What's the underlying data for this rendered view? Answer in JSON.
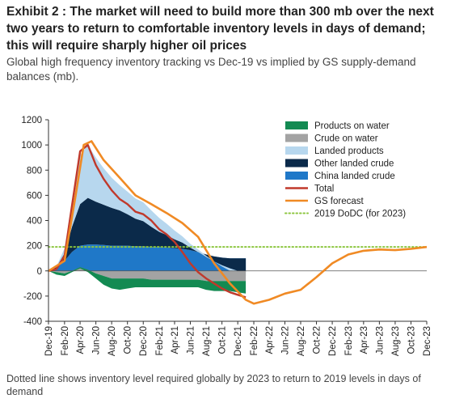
{
  "header": {
    "title": "Exhibit 2 : The market will need to build more than 300 mb over the next two years to return to comfortable inventory levels in days of demand; this will require sharply higher oil prices",
    "subtitle": "Global high frequency inventory tracking vs Dec-19 vs implied by GS supply-demand balances (mb).",
    "footnote": "Dotted line shows inventory level required globally by 2023 to return to 2019 levels in days of demand"
  },
  "chart_data": {
    "type": "area",
    "title": "",
    "xlabel": "",
    "ylabel": "",
    "ylim": [
      -400,
      1200
    ],
    "yticks": [
      -400,
      -200,
      0,
      200,
      400,
      600,
      800,
      1000,
      1200
    ],
    "xlim": [
      "2019-12-01",
      "2023-12-01"
    ],
    "xticks": [
      "Dec-19",
      "Feb-20",
      "Apr-20",
      "Jun-20",
      "Aug-20",
      "Oct-20",
      "Dec-20",
      "Feb-21",
      "Apr-21",
      "Jun-21",
      "Aug-21",
      "Oct-21",
      "Dec-21",
      "Feb-22",
      "Apr-22",
      "Jun-22",
      "Aug-22",
      "Oct-22",
      "Dec-22",
      "Feb-23",
      "Apr-23",
      "Jun-23",
      "Aug-23",
      "Oct-23",
      "Dec-23"
    ],
    "legend_position": "top-right",
    "grid": false,
    "x": [
      "2019-12-01",
      "2020-01-01",
      "2020-02-01",
      "2020-03-01",
      "2020-04-01",
      "2020-05-01",
      "2020-06-01",
      "2020-07-01",
      "2020-08-01",
      "2020-09-01",
      "2020-10-01",
      "2020-11-01",
      "2020-12-01",
      "2021-01-01",
      "2021-02-01",
      "2021-03-01",
      "2021-04-01",
      "2021-05-01",
      "2021-06-01",
      "2021-07-01",
      "2021-08-01",
      "2021-09-01",
      "2021-10-01",
      "2021-11-01",
      "2021-12-01",
      "2022-01-01"
    ],
    "series": [
      {
        "name": "China landed crude",
        "color": "#1f78c8",
        "values": [
          0,
          20,
          80,
          150,
          200,
          210,
          210,
          205,
          200,
          200,
          200,
          195,
          195,
          190,
          190,
          185,
          180,
          175,
          165,
          150,
          130,
          115,
          105,
          100,
          100,
          100
        ]
      },
      {
        "name": "Other landed crude",
        "color": "#0b2a4a",
        "values": [
          0,
          10,
          60,
          200,
          330,
          370,
          340,
          320,
          300,
          280,
          250,
          220,
          200,
          160,
          120,
          100,
          70,
          50,
          20,
          0,
          -20,
          -40,
          -60,
          -80,
          -100,
          -110
        ]
      },
      {
        "name": "Landed products",
        "color": "#b7d7ee",
        "values": [
          0,
          5,
          40,
          200,
          390,
          420,
          350,
          290,
          240,
          200,
          180,
          160,
          150,
          130,
          110,
          90,
          70,
          50,
          30,
          20,
          10,
          0,
          -10,
          -20,
          -30,
          -30
        ]
      },
      {
        "name": "Crude on water",
        "color": "#a3a3a3",
        "values": [
          0,
          -10,
          -20,
          0,
          30,
          10,
          -20,
          -40,
          -60,
          -60,
          -60,
          -60,
          -60,
          -70,
          -70,
          -70,
          -70,
          -70,
          -70,
          -70,
          -80,
          -80,
          -80,
          -80,
          -80,
          -80
        ]
      },
      {
        "name": "Products on water",
        "color": "#138a52",
        "values": [
          0,
          -20,
          -20,
          -10,
          -10,
          -20,
          -40,
          -70,
          -80,
          -90,
          -80,
          -70,
          -70,
          -60,
          -60,
          -60,
          -60,
          -60,
          -60,
          -60,
          -70,
          -80,
          -80,
          -80,
          -90,
          -100
        ]
      },
      {
        "name": "Total",
        "color": "#c0392b",
        "values": [
          0,
          15,
          120,
          520,
          950,
          1000,
          840,
          730,
          640,
          570,
          530,
          470,
          450,
          400,
          330,
          290,
          230,
          150,
          60,
          -10,
          -60,
          -100,
          -140,
          -170,
          -190,
          -210
        ]
      }
    ],
    "gs_forecast": {
      "name": "GS forecast",
      "color": "#f08a24",
      "x": [
        "2019-12-01",
        "2020-02-01",
        "2020-03-15",
        "2020-04-15",
        "2020-05-15",
        "2020-07-01",
        "2020-09-01",
        "2020-11-01",
        "2021-01-01",
        "2021-03-01",
        "2021-05-01",
        "2021-07-01",
        "2021-09-01",
        "2021-11-01",
        "2022-01-01",
        "2022-02-01",
        "2022-04-01",
        "2022-06-01",
        "2022-08-01",
        "2022-10-01",
        "2022-12-01",
        "2023-02-01",
        "2023-04-01",
        "2023-06-01",
        "2023-08-01",
        "2023-10-01",
        "2023-12-01"
      ],
      "values": [
        0,
        80,
        600,
        1000,
        1030,
        880,
        740,
        600,
        530,
        460,
        380,
        270,
        60,
        -100,
        -230,
        -260,
        -230,
        -180,
        -150,
        -50,
        60,
        130,
        160,
        170,
        165,
        175,
        190
      ]
    },
    "reference_line": {
      "name": "2019 DoDC  (for 2023)",
      "color": "#8cc63f",
      "value": 190
    },
    "legend": [
      "Products on water",
      "Crude on water",
      "Landed products",
      "Other landed crude",
      "China landed crude",
      "Total",
      "GS forecast",
      "2019 DoDC  (for 2023)"
    ]
  }
}
